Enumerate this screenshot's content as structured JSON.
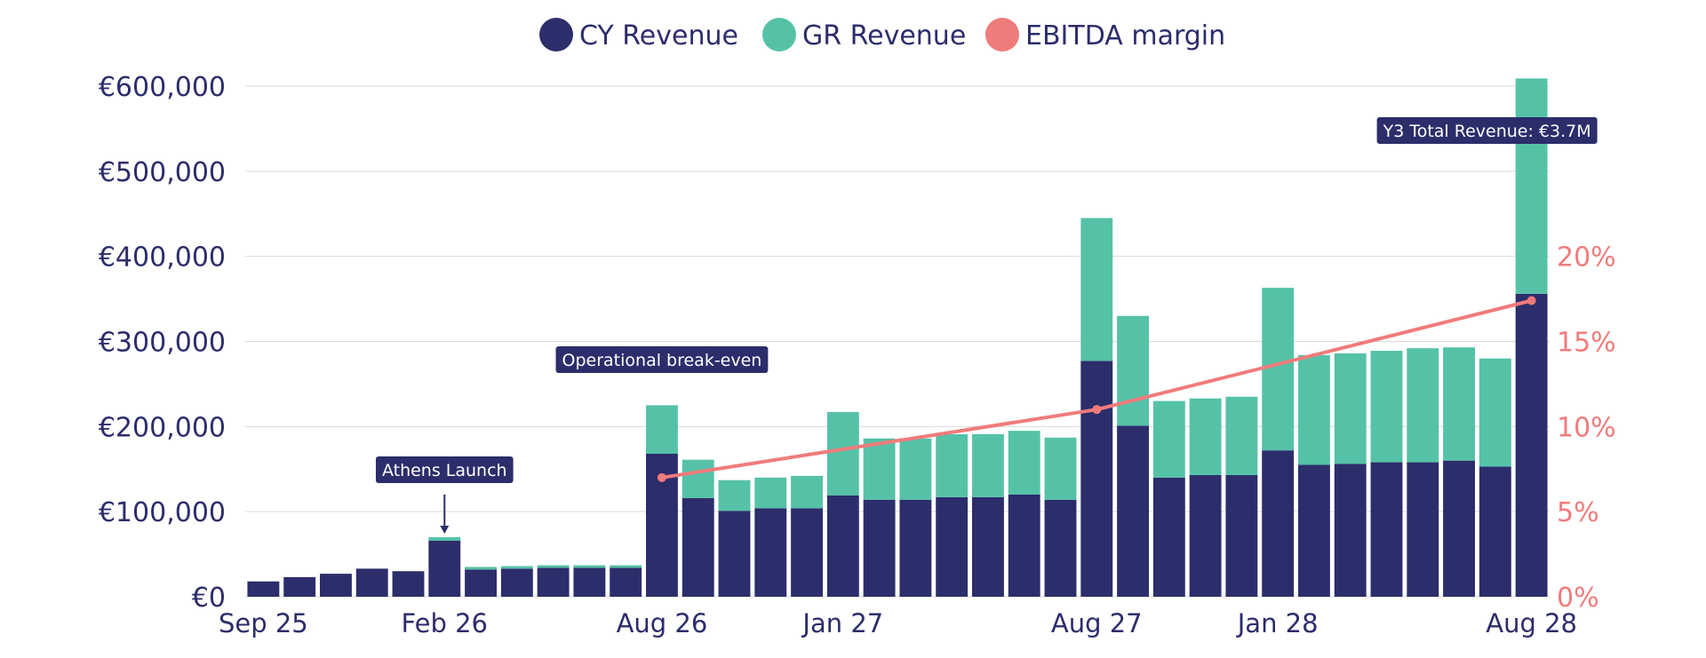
{
  "chart_data": {
    "type": "bar",
    "stacked": true,
    "categories": [
      "Sep 25",
      "Oct 25",
      "Nov 25",
      "Dec 25",
      "Jan 26",
      "Feb 26",
      "Mar 26",
      "Apr 26",
      "May 26",
      "Jun 26",
      "Jul 26",
      "Aug 26",
      "Sep 26",
      "Oct 26",
      "Nov 26",
      "Dec 26",
      "Jan 27",
      "Feb 27",
      "Mar 27",
      "Apr 27",
      "May 27",
      "Jun 27",
      "Jul 27",
      "Aug 27",
      "Sep 27",
      "Oct 27",
      "Nov 27",
      "Dec 27",
      "Jan 28",
      "Feb 28",
      "Mar 28",
      "Apr 28",
      "May 28",
      "Jun 28",
      "Jul 28",
      "Aug 28"
    ],
    "x_tick_labels": [
      {
        "index": 0,
        "label": "Sep 25"
      },
      {
        "index": 5,
        "label": "Feb 26"
      },
      {
        "index": 11,
        "label": "Aug 26"
      },
      {
        "index": 16,
        "label": "Jan 27"
      },
      {
        "index": 23,
        "label": "Aug 27"
      },
      {
        "index": 28,
        "label": "Jan 28"
      },
      {
        "index": 35,
        "label": "Aug 28"
      }
    ],
    "series": [
      {
        "name": "CY Revenue",
        "color": "#2c2d6b",
        "values": [
          18000,
          23000,
          27000,
          33000,
          30000,
          66000,
          32000,
          33000,
          34000,
          34000,
          34000,
          168000,
          116000,
          101000,
          104000,
          104000,
          119000,
          114000,
          114000,
          117000,
          117000,
          120000,
          114000,
          277000,
          201000,
          140000,
          143000,
          143000,
          172000,
          155000,
          156000,
          158000,
          158000,
          160000,
          153000,
          356000
        ]
      },
      {
        "name": "GR Revenue",
        "color": "#55c2a8",
        "values": [
          0,
          0,
          0,
          0,
          0,
          4000,
          3000,
          3000,
          3000,
          3000,
          3000,
          57000,
          45000,
          36000,
          36000,
          38000,
          98000,
          72000,
          72000,
          74000,
          74000,
          75000,
          73000,
          168000,
          129000,
          90000,
          90000,
          92000,
          191000,
          129000,
          130000,
          131000,
          134000,
          133000,
          127000,
          253000
        ]
      },
      {
        "name": "EBITDA margin",
        "type": "line",
        "axis": "right",
        "color": "#f07b7b",
        "points": [
          {
            "x": "Aug 26",
            "y": 7
          },
          {
            "x": "Aug 27",
            "y": 11
          },
          {
            "x": "Aug 28",
            "y": 17.4
          }
        ]
      }
    ],
    "y_left": {
      "min": 0,
      "max": 600000,
      "ticks": [
        0,
        100000,
        200000,
        300000,
        400000,
        500000,
        600000
      ],
      "tick_labels": [
        "€0",
        "€100,000",
        "€200,000",
        "€300,000",
        "€400,000",
        "€500,000",
        "€600,000"
      ]
    },
    "y_right": {
      "min": 0,
      "max": 20,
      "domain_max_at_left": 400000,
      "ticks": [
        0,
        5,
        10,
        15,
        20
      ],
      "tick_labels": [
        "0%",
        "5%",
        "10%",
        "15%",
        "20%"
      ]
    },
    "grid": true,
    "legend_position": "top-center",
    "annotations": [
      {
        "text": "Athens Launch",
        "x": "Feb 26",
        "arrow": true
      },
      {
        "text": "Operational break-even",
        "x": "Aug 26",
        "arrow": false
      },
      {
        "text": "Y3 Total Revenue: €3.7M",
        "x": "Aug 28",
        "arrow": false
      }
    ]
  }
}
